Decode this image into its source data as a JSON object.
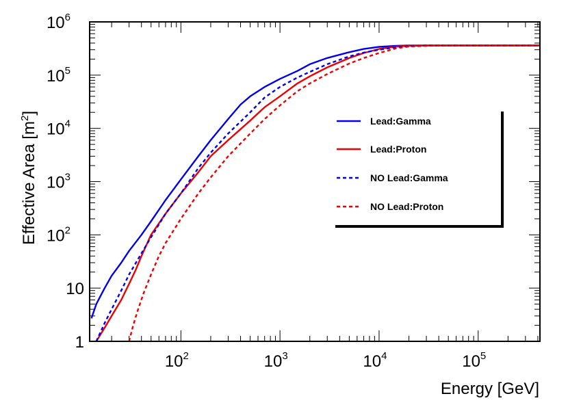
{
  "chart_data": {
    "type": "line",
    "title": "",
    "xlabel": "Energy [GeV]",
    "ylabel_main": "Effective Area [m",
    "ylabel_sup": "2",
    "ylabel_close": "]",
    "xscale": "log",
    "yscale": "log",
    "xlim": [
      12,
      420000
    ],
    "ylim": [
      1,
      1000000
    ],
    "x_tick_labels": [
      {
        "value": 100,
        "base": "10",
        "exp": "2"
      },
      {
        "value": 1000,
        "base": "10",
        "exp": "3"
      },
      {
        "value": 10000,
        "base": "10",
        "exp": "4"
      },
      {
        "value": 100000,
        "base": "10",
        "exp": "5"
      }
    ],
    "y_tick_labels": [
      {
        "value": 1,
        "base": "1",
        "exp": ""
      },
      {
        "value": 10,
        "base": "10",
        "exp": ""
      },
      {
        "value": 100,
        "base": "10",
        "exp": "2"
      },
      {
        "value": 1000,
        "base": "10",
        "exp": "3"
      },
      {
        "value": 10000,
        "base": "10",
        "exp": "4"
      },
      {
        "value": 100000,
        "base": "10",
        "exp": "5"
      },
      {
        "value": 1000000,
        "base": "10",
        "exp": "6"
      }
    ],
    "legend_position": "right",
    "series": [
      {
        "name": "Lead:Gamma",
        "color": "#0000ee",
        "dash": "solid",
        "x": [
          12.5,
          14,
          17,
          20,
          25,
          30,
          40,
          50,
          70,
          100,
          150,
          200,
          300,
          400,
          500,
          700,
          1000,
          1500,
          2000,
          3000,
          5000,
          7000,
          10000,
          15000,
          20000,
          30000,
          50000,
          100000,
          420000
        ],
        "y": [
          2.7,
          5,
          10,
          17,
          30,
          50,
          100,
          180,
          450,
          1100,
          3000,
          6000,
          15000,
          28000,
          40000,
          60000,
          85000,
          120000,
          160000,
          210000,
          270000,
          310000,
          340000,
          355000,
          360000,
          360000,
          360000,
          360000,
          360000
        ]
      },
      {
        "name": "Lead:Proton",
        "color": "#ee0000",
        "dash": "solid",
        "x": [
          14,
          17,
          20,
          25,
          30,
          35,
          40,
          50,
          70,
          100,
          150,
          200,
          300,
          500,
          700,
          1000,
          1500,
          2000,
          3000,
          5000,
          7000,
          10000,
          15000,
          20000,
          30000,
          50000,
          100000,
          420000
        ],
        "y": [
          1,
          1.8,
          3,
          6,
          12,
          22,
          40,
          100,
          250,
          600,
          1500,
          3000,
          6000,
          14000,
          25000,
          40000,
          70000,
          95000,
          140000,
          210000,
          260000,
          310000,
          345000,
          355000,
          360000,
          360000,
          360000,
          360000
        ]
      },
      {
        "name": "NO Lead:Gamma",
        "color": "#0000ee",
        "dash": "dashed",
        "x": [
          14,
          17,
          20,
          25,
          30,
          40,
          50,
          70,
          100,
          150,
          200,
          300,
          500,
          700,
          1000,
          1500,
          2000,
          3000,
          5000,
          7000,
          10000,
          15000,
          20000,
          30000,
          50000,
          100000,
          420000
        ],
        "y": [
          1,
          2.2,
          4,
          9,
          18,
          45,
          90,
          250,
          600,
          1800,
          3500,
          8000,
          20000,
          38000,
          60000,
          90000,
          115000,
          160000,
          225000,
          265000,
          300000,
          335000,
          350000,
          360000,
          360000,
          360000,
          360000
        ]
      },
      {
        "name": "NO Lead:Proton",
        "color": "#ee0000",
        "dash": "dashed",
        "x": [
          30,
          33,
          37,
          42,
          50,
          60,
          70,
          100,
          150,
          200,
          300,
          500,
          700,
          1000,
          1500,
          2000,
          3000,
          5000,
          7000,
          10000,
          15000,
          20000,
          30000,
          50000,
          100000,
          420000
        ],
        "y": [
          1,
          2,
          4,
          8,
          18,
          40,
          70,
          200,
          600,
          1200,
          3000,
          8000,
          15000,
          27000,
          50000,
          70000,
          105000,
          165000,
          210000,
          260000,
          320000,
          345000,
          355000,
          360000,
          360000,
          360000
        ]
      }
    ]
  }
}
